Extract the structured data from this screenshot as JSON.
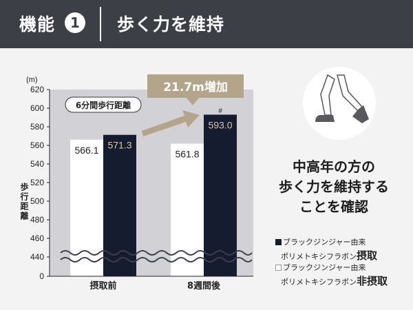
{
  "header": {
    "feature_label": "機能",
    "feature_number": "1",
    "title": "歩く力を維持"
  },
  "colors": {
    "header_bg": "#3d3f47",
    "intake_bar": "#161c30",
    "non_intake_bar": "#ffffff",
    "plot_bg": "#d2d2d6",
    "callout": "#b3a58a"
  },
  "chart_data": {
    "type": "bar",
    "categories": [
      "摂取前",
      "8週間後"
    ],
    "series": [
      {
        "name": "ブラックジンジャー由来ポリメトキシフラボン非摂取",
        "values": [
          566.1,
          561.8
        ]
      },
      {
        "name": "ブラックジンジャー由来ポリメトキシフラボン摂取",
        "values": [
          571.3,
          593.0
        ]
      }
    ],
    "value_labels": [
      [
        "566.1",
        "561.8"
      ],
      [
        "571.3",
        "593.0"
      ]
    ],
    "ylim": [
      440,
      620
    ],
    "axis_break": true,
    "yticks": [
      "620",
      "600",
      "580",
      "560",
      "540",
      "520",
      "500",
      "480",
      "460",
      "440",
      "0"
    ],
    "yunit": "(m)",
    "ylabel": "歩行距離",
    "panel_label": "6分間歩行距離",
    "callout": "21.7m増加",
    "significance_mark": "#",
    "legend_position": "bottom-right"
  },
  "message": [
    "中高年の方の",
    "歩く力を維持する",
    "ことを確認"
  ],
  "legend": [
    {
      "line1": "ブラックジンジャー由来",
      "line2_pre": "ポリメトキシフラボン",
      "line2_strong": "摂取",
      "swatch": "dark"
    },
    {
      "line1": "ブラックジンジャー由来",
      "line2_pre": "ポリメトキシフラボン",
      "line2_strong": "非摂取",
      "swatch": "light"
    }
  ],
  "illustration": "walking-legs-icon"
}
